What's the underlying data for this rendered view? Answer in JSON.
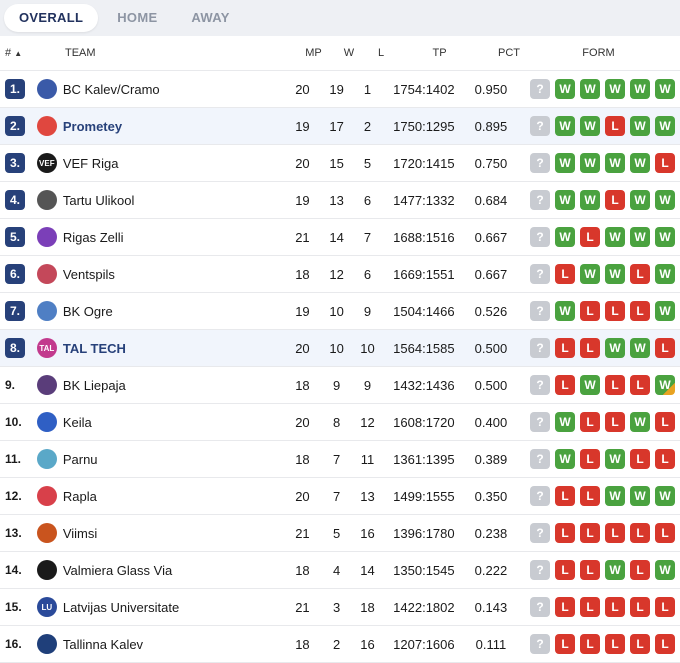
{
  "tabs": [
    "OVERALL",
    "HOME",
    "AWAY"
  ],
  "header": {
    "rank": "#",
    "sort_icon": "▲",
    "team": "TEAM",
    "mp": "MP",
    "w": "W",
    "l": "L",
    "tp": "TP",
    "pct": "PCT",
    "form": "FORM"
  },
  "colors": {
    "win": "#4aa23f",
    "loss": "#d8372b",
    "unknown": "#c8cbd1",
    "rank_box": "#27417a",
    "highlight_row": "#f1f5fc"
  },
  "rows": [
    {
      "rank": "1.",
      "boxed": true,
      "team": "BC Kalev/Cramo",
      "mp": "20",
      "w": "19",
      "l": "1",
      "tp": "1754:1402",
      "pct": "0.950",
      "form": [
        "?",
        "W",
        "W",
        "W",
        "W",
        "W"
      ],
      "logo_color": "#3a5aa8",
      "logo_text": "",
      "icon": "kalev-cramo-logo-icon",
      "highlight": false
    },
    {
      "rank": "2.",
      "boxed": true,
      "team": "Prometey",
      "mp": "19",
      "w": "17",
      "l": "2",
      "tp": "1750:1295",
      "pct": "0.895",
      "form": [
        "?",
        "W",
        "W",
        "L",
        "W",
        "W"
      ],
      "logo_color": "#e0473f",
      "logo_text": "",
      "icon": "prometey-logo-icon",
      "highlight": true
    },
    {
      "rank": "3.",
      "boxed": true,
      "team": "VEF Riga",
      "mp": "20",
      "w": "15",
      "l": "5",
      "tp": "1720:1415",
      "pct": "0.750",
      "form": [
        "?",
        "W",
        "W",
        "W",
        "W",
        "L"
      ],
      "logo_color": "#1a1a1a",
      "logo_text": "VEF",
      "icon": "vef-riga-logo-icon",
      "highlight": false
    },
    {
      "rank": "4.",
      "boxed": true,
      "team": "Tartu Ulikool",
      "mp": "19",
      "w": "13",
      "l": "6",
      "tp": "1477:1332",
      "pct": "0.684",
      "form": [
        "?",
        "W",
        "W",
        "L",
        "W",
        "W"
      ],
      "logo_color": "#555555",
      "logo_text": "",
      "icon": "tartu-ulikool-logo-icon",
      "highlight": false
    },
    {
      "rank": "5.",
      "boxed": true,
      "team": "Rigas Zelli",
      "mp": "21",
      "w": "14",
      "l": "7",
      "tp": "1688:1516",
      "pct": "0.667",
      "form": [
        "?",
        "W",
        "L",
        "W",
        "W",
        "W"
      ],
      "logo_color": "#7b3fb8",
      "logo_text": "",
      "icon": "rigas-zelli-logo-icon",
      "highlight": false
    },
    {
      "rank": "6.",
      "boxed": true,
      "team": "Ventspils",
      "mp": "18",
      "w": "12",
      "l": "6",
      "tp": "1669:1551",
      "pct": "0.667",
      "form": [
        "?",
        "L",
        "W",
        "W",
        "L",
        "W"
      ],
      "logo_color": "#c4485a",
      "logo_text": "",
      "icon": "ventspils-logo-icon",
      "highlight": false
    },
    {
      "rank": "7.",
      "boxed": true,
      "team": "BK Ogre",
      "mp": "19",
      "w": "10",
      "l": "9",
      "tp": "1504:1466",
      "pct": "0.526",
      "form": [
        "?",
        "W",
        "L",
        "L",
        "L",
        "W"
      ],
      "logo_color": "#4f7fc4",
      "logo_text": "",
      "icon": "bk-ogre-logo-icon",
      "highlight": false
    },
    {
      "rank": "8.",
      "boxed": true,
      "team": "TAL TECH",
      "mp": "20",
      "w": "10",
      "l": "10",
      "tp": "1564:1585",
      "pct": "0.500",
      "form": [
        "?",
        "L",
        "L",
        "W",
        "W",
        "L"
      ],
      "logo_color": "#c23a8d",
      "logo_text": "TAL",
      "icon": "tal-tech-logo-icon",
      "highlight": true
    },
    {
      "rank": "9.",
      "boxed": false,
      "team": "BK Liepaja",
      "mp": "18",
      "w": "9",
      "l": "9",
      "tp": "1432:1436",
      "pct": "0.500",
      "form": [
        "?",
        "L",
        "W",
        "L",
        "L",
        "WL"
      ],
      "logo_color": "#5a3d7a",
      "logo_text": "",
      "icon": "bk-liepaja-logo-icon",
      "highlight": false
    },
    {
      "rank": "10.",
      "boxed": false,
      "team": "Keila",
      "mp": "20",
      "w": "8",
      "l": "12",
      "tp": "1608:1720",
      "pct": "0.400",
      "form": [
        "?",
        "W",
        "L",
        "L",
        "W",
        "L"
      ],
      "logo_color": "#2f5fc4",
      "logo_text": "",
      "icon": "keila-logo-icon",
      "highlight": false
    },
    {
      "rank": "11.",
      "boxed": false,
      "team": "Parnu",
      "mp": "18",
      "w": "7",
      "l": "11",
      "tp": "1361:1395",
      "pct": "0.389",
      "form": [
        "?",
        "W",
        "L",
        "W",
        "L",
        "L"
      ],
      "logo_color": "#5aa8c8",
      "logo_text": "",
      "icon": "parnu-anchor-logo-icon",
      "highlight": false
    },
    {
      "rank": "12.",
      "boxed": false,
      "team": "Rapla",
      "mp": "20",
      "w": "7",
      "l": "13",
      "tp": "1499:1555",
      "pct": "0.350",
      "form": [
        "?",
        "L",
        "L",
        "W",
        "W",
        "W"
      ],
      "logo_color": "#d8404a",
      "logo_text": "",
      "icon": "rapla-logo-icon",
      "highlight": false
    },
    {
      "rank": "13.",
      "boxed": false,
      "team": "Viimsi",
      "mp": "21",
      "w": "5",
      "l": "16",
      "tp": "1396:1780",
      "pct": "0.238",
      "form": [
        "?",
        "L",
        "L",
        "L",
        "L",
        "L"
      ],
      "logo_color": "#c9541e",
      "logo_text": "",
      "icon": "viimsi-logo-icon",
      "highlight": false
    },
    {
      "rank": "14.",
      "boxed": false,
      "team": "Valmiera Glass Via",
      "mp": "18",
      "w": "4",
      "l": "14",
      "tp": "1350:1545",
      "pct": "0.222",
      "form": [
        "?",
        "L",
        "L",
        "W",
        "L",
        "W"
      ],
      "logo_color": "#1a1a1a",
      "logo_text": "",
      "icon": "valmiera-glass-via-logo-icon",
      "highlight": false
    },
    {
      "rank": "15.",
      "boxed": false,
      "team": "Latvijas Universitate",
      "mp": "21",
      "w": "3",
      "l": "18",
      "tp": "1422:1802",
      "pct": "0.143",
      "form": [
        "?",
        "L",
        "L",
        "L",
        "L",
        "L"
      ],
      "logo_color": "#2a4a9a",
      "logo_text": "LU",
      "icon": "latvijas-universitate-logo-icon",
      "highlight": false
    },
    {
      "rank": "16.",
      "boxed": false,
      "team": "Tallinna Kalev",
      "mp": "18",
      "w": "2",
      "l": "16",
      "tp": "1207:1606",
      "pct": "0.111",
      "form": [
        "?",
        "L",
        "L",
        "L",
        "L",
        "L"
      ],
      "logo_color": "#1f3f7a",
      "logo_text": "",
      "icon": "tallinna-kalev-logo-icon",
      "highlight": false
    }
  ]
}
